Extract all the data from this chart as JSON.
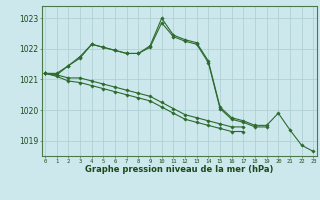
{
  "x": [
    0,
    1,
    2,
    3,
    4,
    5,
    6,
    7,
    8,
    9,
    10,
    11,
    12,
    13,
    14,
    15,
    16,
    17,
    18,
    19,
    20,
    21,
    22,
    23
  ],
  "series": [
    [
      1021.2,
      1021.2,
      1021.45,
      1021.7,
      1022.15,
      1022.05,
      1021.95,
      1021.85,
      1021.85,
      1022.1,
      1023.0,
      1022.45,
      1022.3,
      1022.2,
      1021.6,
      1020.1,
      1019.75,
      1019.65,
      1019.5,
      1019.5,
      1019.9,
      1019.35,
      1018.85,
      1018.65
    ],
    [
      1021.2,
      1021.15,
      1021.45,
      1021.75,
      1022.15,
      1022.05,
      1021.95,
      1021.85,
      1021.85,
      1022.05,
      1022.85,
      1022.4,
      1022.25,
      1022.15,
      1021.55,
      1020.05,
      1019.7,
      1019.6,
      1019.45,
      1019.45,
      null,
      null,
      null,
      null
    ],
    [
      1021.2,
      1021.15,
      1021.05,
      1021.05,
      1020.95,
      1020.85,
      1020.75,
      1020.65,
      1020.55,
      1020.45,
      1020.25,
      1020.05,
      1019.85,
      1019.75,
      1019.65,
      1019.55,
      1019.45,
      1019.45,
      null,
      null,
      null,
      null,
      null,
      null
    ],
    [
      1021.2,
      1021.1,
      1020.95,
      1020.9,
      1020.8,
      1020.7,
      1020.6,
      1020.5,
      1020.4,
      1020.3,
      1020.1,
      1019.9,
      1019.7,
      1019.6,
      1019.5,
      1019.4,
      1019.3,
      1019.3,
      null,
      null,
      null,
      null,
      null,
      null
    ]
  ],
  "line_color": "#2d6a2d",
  "background_color": "#cce8ec",
  "grid_color": "#aaccd0",
  "xlabel": "Graphe pression niveau de la mer (hPa)",
  "ylim": [
    1018.5,
    1023.4
  ],
  "yticks": [
    1019,
    1020,
    1021,
    1022,
    1023
  ],
  "xticks": [
    0,
    1,
    2,
    3,
    4,
    5,
    6,
    7,
    8,
    9,
    10,
    11,
    12,
    13,
    14,
    15,
    16,
    17,
    18,
    19,
    20,
    21,
    22,
    23
  ]
}
